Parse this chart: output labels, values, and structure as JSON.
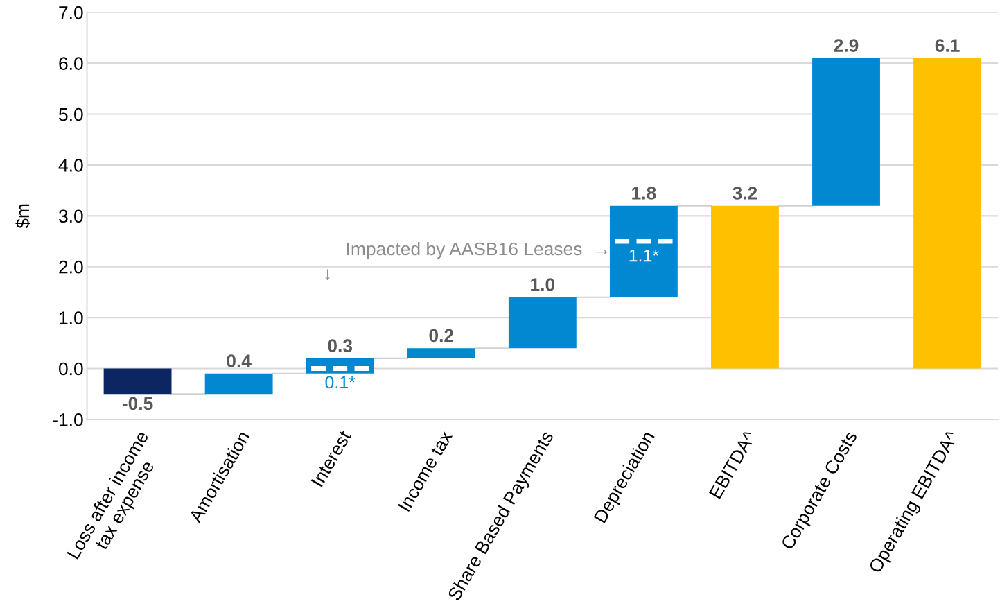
{
  "chart_data": {
    "type": "bar",
    "ylabel": "$m",
    "categories": [
      "Loss after income\ntax expense",
      "Amortisation",
      "Interest",
      "Income tax",
      "Share Based Payments",
      "Depreciation",
      "EBITDA^",
      "Corporate Costs",
      "Operating EBITDA^"
    ],
    "values": [
      -0.5,
      0.4,
      0.3,
      0.2,
      1.0,
      1.8,
      3.2,
      2.9,
      6.1
    ],
    "base": [
      0,
      -0.5,
      -0.1,
      0.2,
      0.4,
      1.4,
      0,
      3.2,
      0
    ],
    "colors": [
      "#0b2660",
      "#0288d1",
      "#0288d1",
      "#0288d1",
      "#0288d1",
      "#0288d1",
      "#ffc000",
      "#0288d1",
      "#ffc000"
    ],
    "value_labels": [
      "-0.5",
      "0.4",
      "0.3",
      "0.2",
      "1.0",
      "1.8",
      "3.2",
      "2.9",
      "6.1"
    ],
    "ylim": [
      -1.0,
      7.0
    ],
    "yticks": [
      {
        "value": -1,
        "label": "-1.0"
      },
      {
        "value": 0,
        "label": "0.0"
      },
      {
        "value": 1,
        "label": "1.0"
      },
      {
        "value": 2,
        "label": "2.0"
      },
      {
        "value": 3,
        "label": "3.0"
      },
      {
        "value": 4,
        "label": "4.0"
      },
      {
        "value": 5,
        "label": "5.0"
      },
      {
        "value": 6,
        "label": "6.0"
      },
      {
        "value": 7,
        "label": "7.0"
      }
    ],
    "grid": "y",
    "annotations": [
      {
        "text": "0.1*",
        "x": "Interest",
        "y": -0.1
      },
      {
        "text": "1.1*",
        "x": "Depreciation",
        "y": 1.4
      },
      "Impacted by AASB16 Leases  →",
      "↓"
    ]
  }
}
